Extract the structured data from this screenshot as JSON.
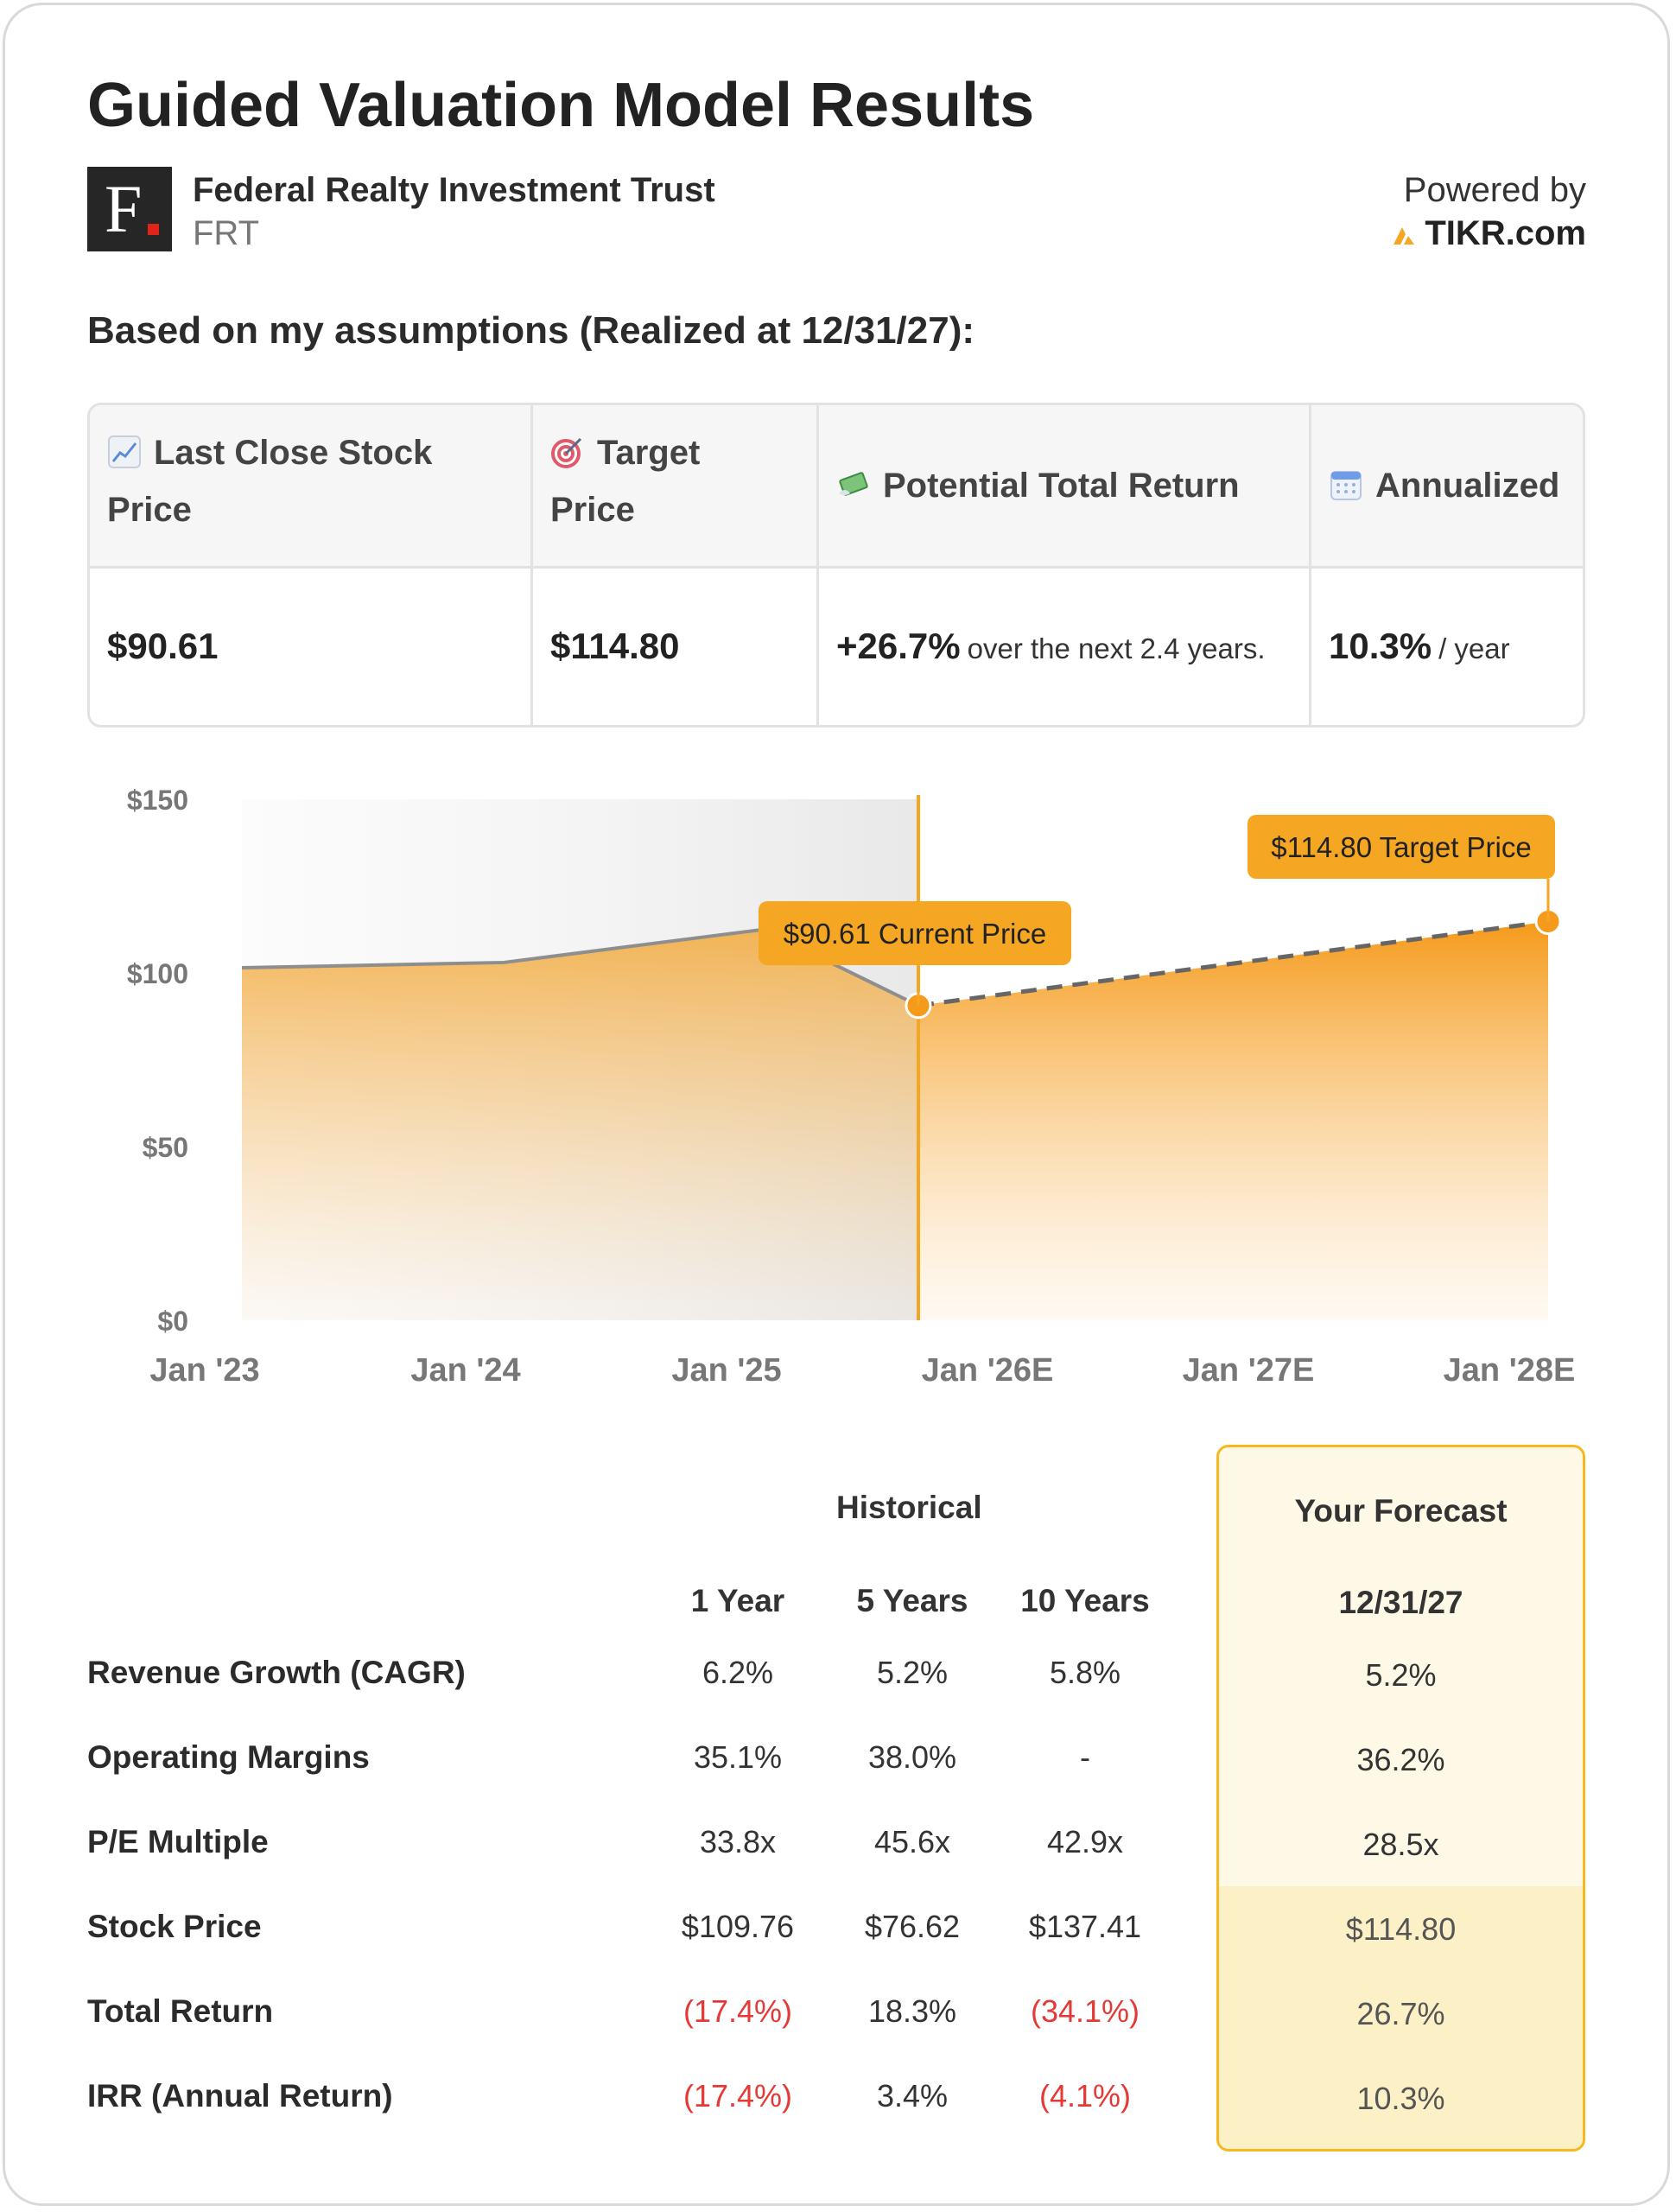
{
  "header": {
    "title": "Guided Valuation Model Results",
    "company_name": "Federal Realty Investment Trust",
    "ticker": "FRT",
    "logo_letter": "F",
    "powered_by": "Powered by",
    "brand": "TIKR.com",
    "brand_color": "#f5a623"
  },
  "assumption_text": "Based on my assumptions (Realized at 12/31/27):",
  "summary": {
    "last_close": {
      "label_line1": "Last Close Stock",
      "label_line2": "Price",
      "value": "$90.61",
      "icon": "chart-increasing-icon"
    },
    "target": {
      "label_line1": "Target",
      "label_line2": "Price",
      "value": "$114.80",
      "icon": "target-icon"
    },
    "potential": {
      "label": "Potential Total Return",
      "value": "+26.7%",
      "note": "over the next 2.4 years.",
      "icon": "money-with-wings-icon"
    },
    "annualized": {
      "label": "Annualized",
      "value": "10.3%",
      "note": "/ year",
      "icon": "calendar-icon"
    }
  },
  "chart_data": {
    "type": "area",
    "x_labels": [
      "Jan '23",
      "Jan '24",
      "Jan '25",
      "Jan '26E",
      "Jan '27E",
      "Jan '28E"
    ],
    "y_tick_labels": [
      "$150",
      "$100",
      "$50",
      "$0"
    ],
    "ylim": [
      0,
      150
    ],
    "historical": [
      {
        "x": "Jan '23",
        "y": 101.5
      },
      {
        "x": "Jan '24",
        "y": 103
      },
      {
        "x": "Jan '25",
        "y": 112.5
      },
      {
        "x": "Current",
        "y": 90.61
      }
    ],
    "forecast": [
      {
        "x": "Current",
        "y": 90.61
      },
      {
        "x": "Jan '28E",
        "y": 114.8
      }
    ],
    "current_callout": "$90.61 Current Price",
    "target_callout": "$114.80 Target Price",
    "accent_color": "#f5a623"
  },
  "stats": {
    "historical_heading": "Historical",
    "forecast_heading": "Your Forecast",
    "columns": [
      "1 Year",
      "5 Years",
      "10 Years"
    ],
    "forecast_date": "12/31/27",
    "rows": [
      {
        "label": "Revenue Growth (CAGR)",
        "values": [
          "6.2%",
          "5.2%",
          "5.8%"
        ],
        "forecast": "5.2%"
      },
      {
        "label": "Operating Margins",
        "values": [
          "35.1%",
          "38.0%",
          "-"
        ],
        "forecast": "36.2%"
      },
      {
        "label": "P/E Multiple",
        "values": [
          "33.8x",
          "45.6x",
          "42.9x"
        ],
        "forecast": "28.5x"
      },
      {
        "label": "Stock Price",
        "values": [
          "$109.76",
          "$76.62",
          "$137.41"
        ],
        "forecast": "$114.80"
      },
      {
        "label": "Total Return",
        "values": [
          "(17.4%)",
          "18.3%",
          "(34.1%)"
        ],
        "forecast": "26.7%"
      },
      {
        "label": "IRR (Annual Return)",
        "values": [
          "(17.4%)",
          "3.4%",
          "(4.1%)"
        ],
        "forecast": "10.3%"
      }
    ]
  }
}
